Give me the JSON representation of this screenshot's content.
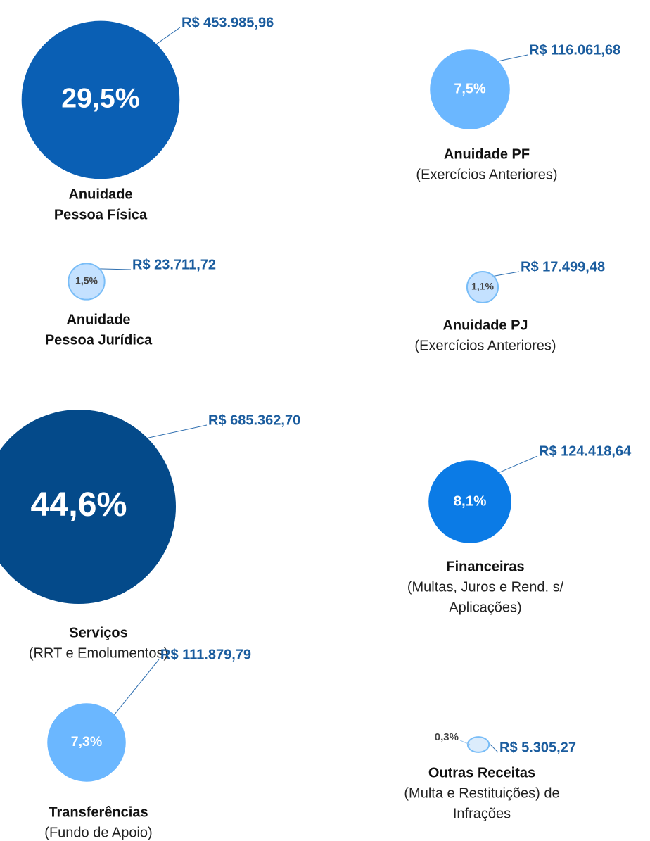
{
  "chart_data": {
    "type": "bubble",
    "categories": [
      {
        "bold": [
          "Anuidade",
          "Pessoa Física"
        ],
        "detail": []
      },
      {
        "bold": [
          "Anuidade  PF"
        ],
        "detail": [
          "(Exercícios Anteriores)"
        ]
      },
      {
        "bold": [
          "Anuidade",
          "Pessoa Jurídica"
        ],
        "detail": []
      },
      {
        "bold": [
          "Anuidade  PJ"
        ],
        "detail": [
          "(Exercícios Anteriores)"
        ]
      },
      {
        "bold": [
          "Serviços"
        ],
        "detail": [
          "(RRT e Emolumentos)"
        ]
      },
      {
        "bold": [
          "Financeiras"
        ],
        "detail": [
          "(Multas, Juros e Rend. s/",
          "Aplicações)"
        ]
      },
      {
        "bold": [
          "Transferências"
        ],
        "detail": [
          "(Fundo de Apoio)"
        ]
      },
      {
        "bold": [
          "Outras Receitas"
        ],
        "detail": [
          "(Multa e Restituições) de",
          "Infrações"
        ]
      }
    ],
    "values": [
      453985.96,
      116061.68,
      23711.72,
      17499.48,
      685362.7,
      124418.64,
      111879.79,
      5305.27
    ],
    "value_labels": [
      "R$ 453.985,96",
      "R$ 116.061,68",
      "R$ 23.711,72",
      "R$ 17.499,48",
      "R$ 685.362,70",
      "R$ 124.418,64",
      "R$ 111.879,79",
      "R$ 5.305,27"
    ],
    "percentages": [
      29.5,
      7.5,
      1.5,
      1.1,
      44.6,
      8.1,
      7.3,
      0.3
    ],
    "percentage_labels": [
      "29,5%",
      "7,5%",
      "1,5%",
      "1,1%",
      "44,6%",
      "8,1%",
      "7,3%",
      "0,3%"
    ],
    "colors": [
      "#0a5fb4",
      "#6bb7ff",
      "#c4e1ff",
      "#c4e1ff",
      "#044a8a",
      "#0b7be6",
      "#6bb7ff",
      "#dcecfc"
    ]
  }
}
